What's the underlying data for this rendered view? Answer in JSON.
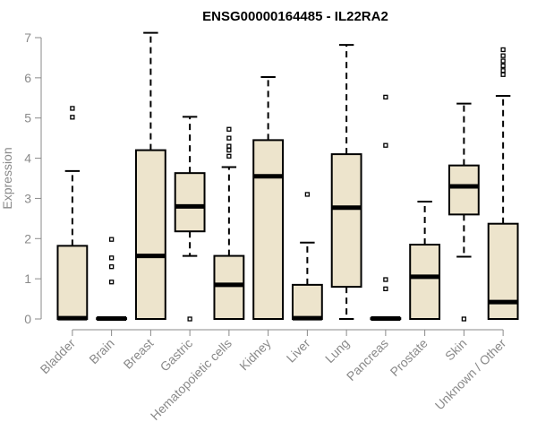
{
  "chart_data": {
    "type": "boxplot",
    "title": "ENSG00000164485 - IL22RA2",
    "xlabel": "",
    "ylabel": "Expression",
    "ylim": [
      0,
      7
    ],
    "yticks": [
      0,
      1,
      2,
      3,
      4,
      5,
      6,
      7
    ],
    "box_fill": "#ede4cc",
    "categories": [
      "Bladder",
      "Brain",
      "Breast",
      "Gastric",
      "Hematopoietic cells",
      "Kidney",
      "Liver",
      "Lung",
      "Pancreas",
      "Prostate",
      "Skin",
      "Unknown / Other"
    ],
    "boxes": [
      {
        "name": "Bladder",
        "whisker_low": 0,
        "q1": 0,
        "median": 0.02,
        "q3": 1.82,
        "whisker_high": 3.68,
        "outliers": [
          5.02,
          5.24
        ]
      },
      {
        "name": "Brain",
        "whisker_low": 0,
        "q1": 0,
        "median": 0.01,
        "q3": 0.02,
        "whisker_high": 0.02,
        "outliers": [
          0.92,
          1.3,
          1.52,
          1.98
        ]
      },
      {
        "name": "Breast",
        "whisker_low": 0,
        "q1": 0,
        "median": 1.57,
        "q3": 4.2,
        "whisker_high": 7.12,
        "outliers": []
      },
      {
        "name": "Gastric",
        "whisker_low": 1.57,
        "q1": 2.18,
        "median": 2.8,
        "q3": 3.63,
        "whisker_high": 5.03,
        "outliers": [
          0
        ]
      },
      {
        "name": "Hematopoietic cells",
        "whisker_low": 0,
        "q1": 0,
        "median": 0.85,
        "q3": 1.57,
        "whisker_high": 3.78,
        "outliers": [
          4.05,
          4.2,
          4.3,
          4.5,
          4.72
        ]
      },
      {
        "name": "Kidney",
        "whisker_low": 0,
        "q1": 0,
        "median": 3.55,
        "q3": 4.45,
        "whisker_high": 6.02,
        "outliers": []
      },
      {
        "name": "Liver",
        "whisker_low": 0,
        "q1": 0,
        "median": 0.02,
        "q3": 0.85,
        "whisker_high": 1.9,
        "outliers": [
          3.1
        ]
      },
      {
        "name": "Lung",
        "whisker_low": 0,
        "q1": 0.8,
        "median": 2.77,
        "q3": 4.1,
        "whisker_high": 6.82,
        "outliers": []
      },
      {
        "name": "Pancreas",
        "whisker_low": 0,
        "q1": 0,
        "median": 0.01,
        "q3": 0.02,
        "whisker_high": 0.02,
        "outliers": [
          0.75,
          0.98,
          4.32,
          5.52
        ]
      },
      {
        "name": "Prostate",
        "whisker_low": 0,
        "q1": 0,
        "median": 1.05,
        "q3": 1.85,
        "whisker_high": 2.92,
        "outliers": []
      },
      {
        "name": "Skin",
        "whisker_low": 1.55,
        "q1": 2.6,
        "median": 3.3,
        "q3": 3.82,
        "whisker_high": 5.36,
        "outliers": [
          0
        ]
      },
      {
        "name": "Unknown / Other",
        "whisker_low": 0,
        "q1": 0,
        "median": 0.42,
        "q3": 2.37,
        "whisker_high": 5.55,
        "outliers": [
          6.08,
          6.18,
          6.3,
          6.42,
          6.55,
          6.7
        ]
      }
    ]
  }
}
